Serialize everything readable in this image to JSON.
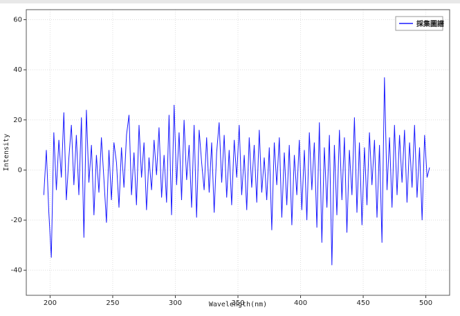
{
  "chart_data": {
    "type": "line",
    "x_label": "Wavelength(nm)",
    "y_label": "Intensity",
    "x": [
      195,
      197,
      199,
      201,
      203,
      205,
      207,
      209,
      211,
      213,
      215,
      217,
      219,
      221,
      223,
      225,
      227,
      229,
      231,
      233,
      235,
      237,
      239,
      241,
      243,
      245,
      247,
      249,
      251,
      253,
      255,
      257,
      259,
      261,
      263,
      265,
      267,
      269,
      271,
      273,
      275,
      277,
      279,
      281,
      283,
      285,
      287,
      289,
      291,
      293,
      295,
      297,
      299,
      301,
      303,
      305,
      307,
      309,
      311,
      313,
      315,
      317,
      319,
      321,
      323,
      325,
      327,
      329,
      331,
      333,
      335,
      337,
      339,
      341,
      343,
      345,
      347,
      349,
      351,
      353,
      355,
      357,
      359,
      361,
      363,
      365,
      367,
      369,
      371,
      373,
      375,
      377,
      379,
      381,
      383,
      385,
      387,
      389,
      391,
      393,
      395,
      397,
      399,
      401,
      403,
      405,
      407,
      409,
      411,
      413,
      415,
      417,
      419,
      421,
      423,
      425,
      427,
      429,
      431,
      433,
      435,
      437,
      439,
      441,
      443,
      445,
      447,
      449,
      451,
      453,
      455,
      457,
      459,
      461,
      463,
      465,
      467,
      469,
      471,
      473,
      475,
      477,
      479,
      481,
      483,
      485,
      487,
      489,
      491,
      493,
      495,
      497,
      499,
      501,
      503
    ],
    "series": [
      {
        "name": "採集圖譜",
        "color": "#1a1aff",
        "values": [
          -10,
          8,
          -17,
          -35,
          15,
          -8,
          12,
          -3,
          23,
          -12,
          5,
          18,
          -6,
          14,
          -10,
          21,
          -27,
          24,
          -5,
          10,
          -18,
          6,
          -9,
          13,
          -4,
          -21,
          8,
          -12,
          11,
          3,
          -15,
          9,
          -7,
          14,
          22,
          -10,
          7,
          -14,
          18,
          -3,
          11,
          -16,
          5,
          -8,
          12,
          -2,
          17,
          -11,
          6,
          -13,
          22,
          -18,
          26,
          -6,
          15,
          -12,
          20,
          -4,
          10,
          -15,
          18,
          -19,
          16,
          3,
          -8,
          13,
          -9,
          11,
          -17,
          7,
          19,
          -5,
          14,
          -11,
          8,
          -14,
          12,
          -3,
          18,
          -10,
          6,
          -16,
          13,
          -7,
          10,
          -13,
          16,
          -9,
          5,
          -12,
          9,
          -24,
          11,
          -6,
          13,
          -19,
          7,
          -14,
          10,
          -22,
          6,
          -10,
          12,
          -16,
          8,
          -20,
          15,
          -8,
          11,
          -23,
          19,
          -29,
          9,
          -15,
          14,
          -38,
          10,
          -18,
          16,
          -12,
          13,
          -25,
          8,
          -10,
          21,
          -17,
          11,
          -22,
          9,
          -14,
          15,
          -6,
          12,
          -19,
          10,
          -29,
          37,
          -8,
          13,
          -15,
          18,
          -10,
          14,
          -5,
          16,
          -13,
          11,
          -7,
          18,
          -11,
          9,
          -20,
          14,
          -3,
          1
        ]
      }
    ],
    "xlim": [
      181,
      519
    ],
    "ylim": [
      -50,
      64
    ],
    "xticks": [
      200,
      250,
      300,
      350,
      400,
      450,
      500
    ],
    "yticks": [
      -40,
      -20,
      0,
      20,
      40,
      60
    ],
    "grid": true,
    "legend": "top-right"
  }
}
